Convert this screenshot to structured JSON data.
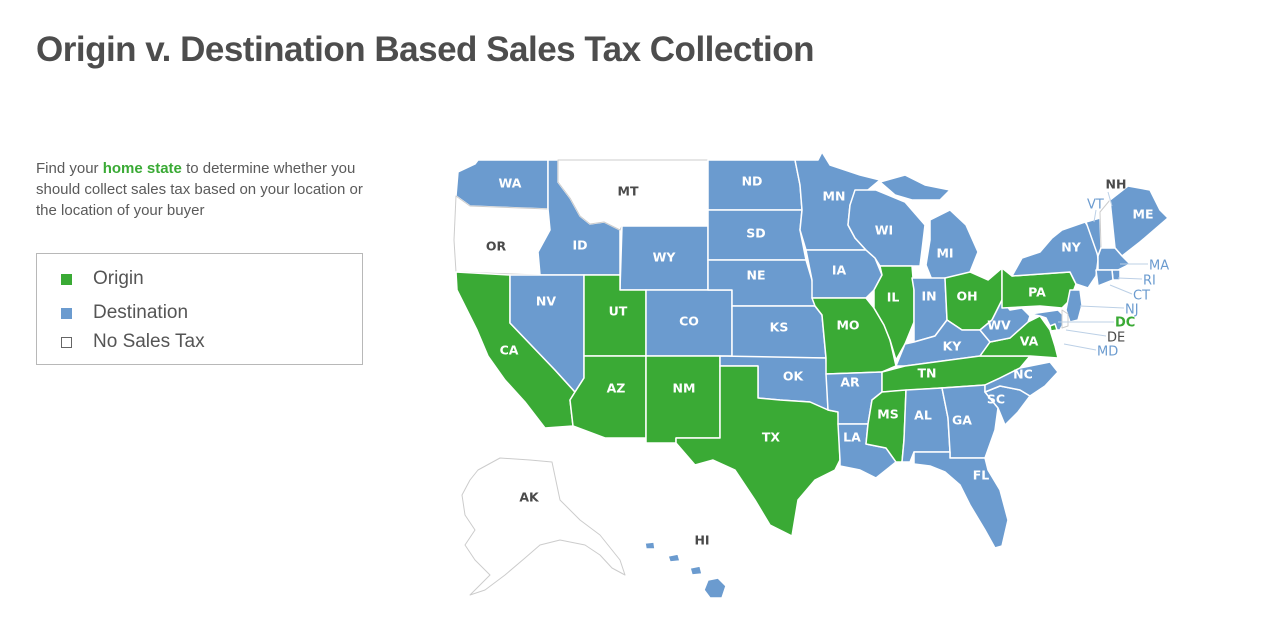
{
  "title": "Origin v. Destination Based Sales Tax Collection",
  "intro": {
    "before": "Find your ",
    "highlight": "home state",
    "after": " to determine whether you should collect sales tax based on your location or the location of your buyer"
  },
  "legend": [
    {
      "label": "Origin",
      "color": "#3aaa35"
    },
    {
      "label": "Destination",
      "color": "#6b9bcf"
    },
    {
      "label": "No Sales Tax",
      "color": "#ffffff"
    }
  ],
  "colors": {
    "origin": "#3aaa35",
    "destination": "#6b9bcf",
    "none": "#ffffff",
    "border": "#cccccc"
  },
  "states": {
    "WA": {
      "label": "WA",
      "category": "destination"
    },
    "OR": {
      "label": "OR",
      "category": "none"
    },
    "CA": {
      "label": "CA",
      "category": "origin"
    },
    "ID": {
      "label": "ID",
      "category": "destination"
    },
    "NV": {
      "label": "NV",
      "category": "destination"
    },
    "MT": {
      "label": "MT",
      "category": "none"
    },
    "WY": {
      "label": "WY",
      "category": "destination"
    },
    "UT": {
      "label": "UT",
      "category": "origin"
    },
    "CO": {
      "label": "CO",
      "category": "destination"
    },
    "AZ": {
      "label": "AZ",
      "category": "origin"
    },
    "NM": {
      "label": "NM",
      "category": "origin"
    },
    "ND": {
      "label": "ND",
      "category": "destination"
    },
    "SD": {
      "label": "SD",
      "category": "destination"
    },
    "NE": {
      "label": "NE",
      "category": "destination"
    },
    "KS": {
      "label": "KS",
      "category": "destination"
    },
    "OK": {
      "label": "OK",
      "category": "destination"
    },
    "TX": {
      "label": "TX",
      "category": "origin"
    },
    "MN": {
      "label": "MN",
      "category": "destination"
    },
    "IA": {
      "label": "IA",
      "category": "destination"
    },
    "MO": {
      "label": "MO",
      "category": "origin"
    },
    "AR": {
      "label": "AR",
      "category": "destination"
    },
    "LA": {
      "label": "LA",
      "category": "destination"
    },
    "WI": {
      "label": "WI",
      "category": "destination"
    },
    "IL": {
      "label": "IL",
      "category": "origin"
    },
    "MI": {
      "label": "MI",
      "category": "destination"
    },
    "IN": {
      "label": "IN",
      "category": "destination"
    },
    "OH": {
      "label": "OH",
      "category": "origin"
    },
    "KY": {
      "label": "KY",
      "category": "destination"
    },
    "TN": {
      "label": "TN",
      "category": "origin"
    },
    "MS": {
      "label": "MS",
      "category": "origin"
    },
    "AL": {
      "label": "AL",
      "category": "destination"
    },
    "GA": {
      "label": "GA",
      "category": "destination"
    },
    "FL": {
      "label": "FL",
      "category": "destination"
    },
    "SC": {
      "label": "SC",
      "category": "destination"
    },
    "NC": {
      "label": "NC",
      "category": "destination"
    },
    "VA": {
      "label": "VA",
      "category": "origin"
    },
    "WV": {
      "label": "WV",
      "category": "destination"
    },
    "PA": {
      "label": "PA",
      "category": "origin"
    },
    "NY": {
      "label": "NY",
      "category": "destination"
    },
    "VT": {
      "label": "VT",
      "category": "destination"
    },
    "NH": {
      "label": "NH",
      "category": "none"
    },
    "ME": {
      "label": "ME",
      "category": "destination"
    },
    "MA": {
      "label": "MA",
      "category": "destination"
    },
    "RI": {
      "label": "RI",
      "category": "destination"
    },
    "CT": {
      "label": "CT",
      "category": "destination"
    },
    "NJ": {
      "label": "NJ",
      "category": "destination"
    },
    "DE": {
      "label": "DE",
      "category": "none"
    },
    "MD": {
      "label": "MD",
      "category": "destination"
    },
    "DC": {
      "label": "DC",
      "category": "origin"
    },
    "AK": {
      "label": "AK",
      "category": "none"
    },
    "HI": {
      "label": "HI",
      "category": "destination"
    }
  }
}
